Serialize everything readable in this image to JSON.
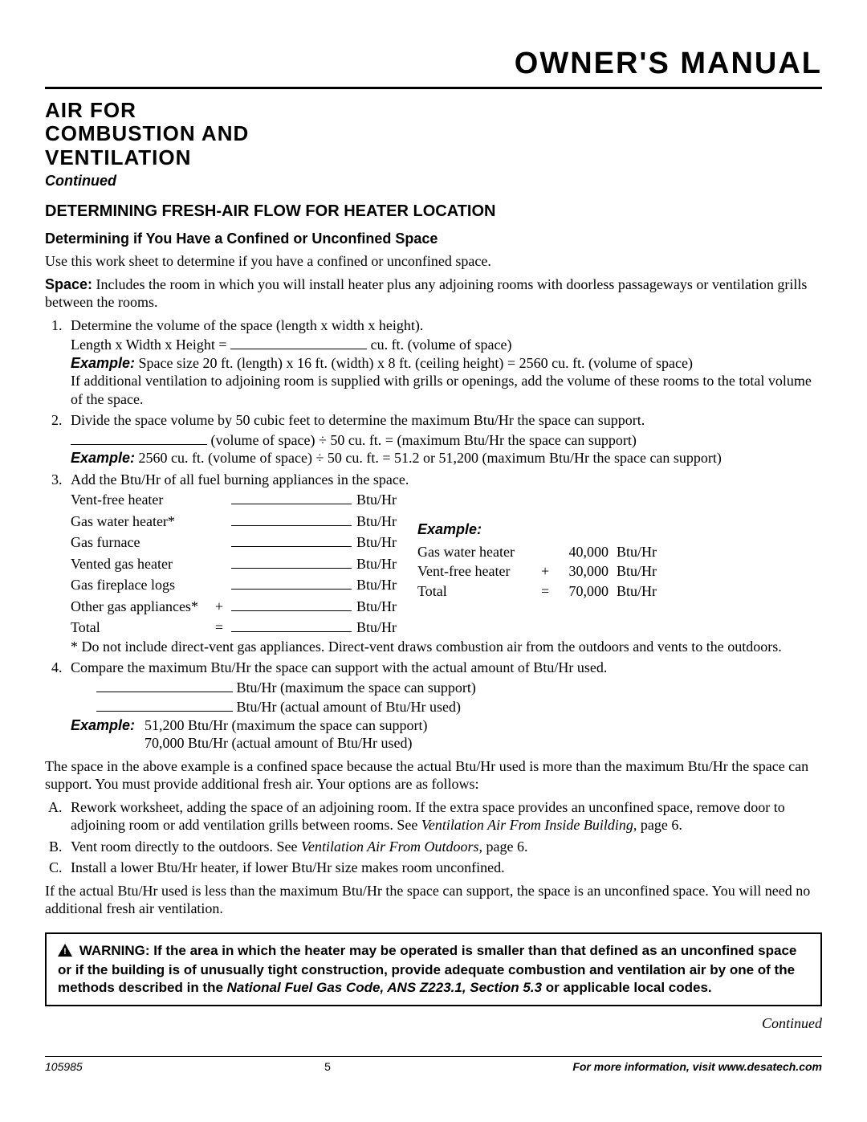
{
  "header": {
    "title": "OWNER'S MANUAL"
  },
  "section": {
    "title_l1": "AIR FOR",
    "title_l2": "COMBUSTION AND",
    "title_l3": "VENTILATION",
    "continued": "Continued",
    "sub1": "DETERMINING FRESH-AIR FLOW FOR HEATER LOCATION",
    "sub2": "Determining if You Have a Confined or Unconfined Space",
    "intro": "Use this work sheet to determine if you have a confined or unconfined space.",
    "space_label": "Space:",
    "space_text": " Includes the room in which you will install heater plus any adjoining rooms with doorless passageways or ventilation grills between the rooms."
  },
  "step1": {
    "text": "Determine the volume of the space (length x width x height).",
    "formula_pre": "Length x Width x Height = ",
    "formula_post": " cu. ft. (volume of space)",
    "example_label": "Example:",
    "example_text": " Space size 20 ft. (length) x 16 ft. (width) x 8 ft. (ceiling height) = 2560 cu. ft. (volume of space)",
    "note": "If additional ventilation to adjoining room is supplied with grills or openings, add the volume of these rooms to the total volume of the space."
  },
  "step2": {
    "text": "Divide the space volume by 50 cubic feet to determine the maximum Btu/Hr the space can support.",
    "formula_post": " (volume of space) ÷ 50 cu. ft. = (maximum Btu/Hr the space can support)",
    "example_label": "Example:",
    "example_text": " 2560 cu. ft. (volume of space) ÷ 50 cu. ft. = 51.2 or 51,200 (maximum Btu/Hr the space can support)"
  },
  "step3": {
    "text": "Add the Btu/Hr of all fuel burning appliances in the space.",
    "appliances": [
      {
        "name": "Vent-free heater",
        "op": "",
        "unit": "Btu/Hr"
      },
      {
        "name": "Gas water heater*",
        "op": "",
        "unit": "Btu/Hr"
      },
      {
        "name": "Gas furnace",
        "op": "",
        "unit": "Btu/Hr"
      },
      {
        "name": "Vented gas heater",
        "op": "",
        "unit": "Btu/Hr"
      },
      {
        "name": "Gas fireplace logs",
        "op": "",
        "unit": "Btu/Hr"
      },
      {
        "name": "Other gas appliances*",
        "op": "+",
        "unit": "Btu/Hr"
      },
      {
        "name": "Total",
        "op": "=",
        "unit": "Btu/Hr"
      }
    ],
    "example_label": "Example:",
    "example_rows": [
      {
        "name": "Gas water heater",
        "op": "",
        "value": "40,000",
        "unit": "Btu/Hr"
      },
      {
        "name": "Vent-free heater",
        "op": "+",
        "value": "30,000",
        "unit": "Btu/Hr"
      },
      {
        "name": "Total",
        "op": "=",
        "value": "70,000",
        "unit": "Btu/Hr"
      }
    ],
    "footnote": "* Do not include direct-vent gas appliances. Direct-vent draws combustion air from the outdoors and vents to the outdoors."
  },
  "step4": {
    "text": "Compare the maximum Btu/Hr the space can support with the actual amount of Btu/Hr used.",
    "line1_post": " Btu/Hr (maximum the space can support)",
    "line2_post": " Btu/Hr (actual amount of Btu/Hr used)",
    "example_label": "Example:",
    "ex_line1": "51,200 Btu/Hr (maximum the space can support)",
    "ex_line2": "70,000 Btu/Hr (actual amount of Btu/Hr used)"
  },
  "after": {
    "p1": "The space in the above example is a confined space because the actual Btu/Hr used is more than the maximum Btu/Hr the space can support. You must provide additional fresh air. Your options are as follows:",
    "optA_pre": "Rework worksheet, adding the space of an adjoining room. If the extra space provides an unconfined space, remove door to adjoining room or add ventilation grills between rooms. See ",
    "optA_ital": "Ventilation Air From Inside Building,",
    "optA_post": " page 6.",
    "optB_pre": "Vent room directly to the outdoors. See ",
    "optB_ital": "Ventilation Air From Outdoors,",
    "optB_post": " page 6.",
    "optC": "Install a lower Btu/Hr heater, if lower Btu/Hr size makes room unconfined.",
    "p2": "If the actual Btu/Hr used is less than the maximum Btu/Hr the space can support, the space is an unconfined space. You will need no additional fresh air ventilation."
  },
  "warning": {
    "pre": " WARNING: If the area in which the heater may be operated is smaller than that defined as an unconfined space or if the building is of unusually tight construction, provide adequate combustion and ventilation air by one of the methods described in the ",
    "ital": "National Fuel Gas Code, ANS Z223.1, Section 5.3",
    "post": " or applicable local codes."
  },
  "continued_right": "Continued",
  "footer": {
    "docid": "105985",
    "page": "5",
    "info": "For more information, visit www.desatech.com"
  }
}
